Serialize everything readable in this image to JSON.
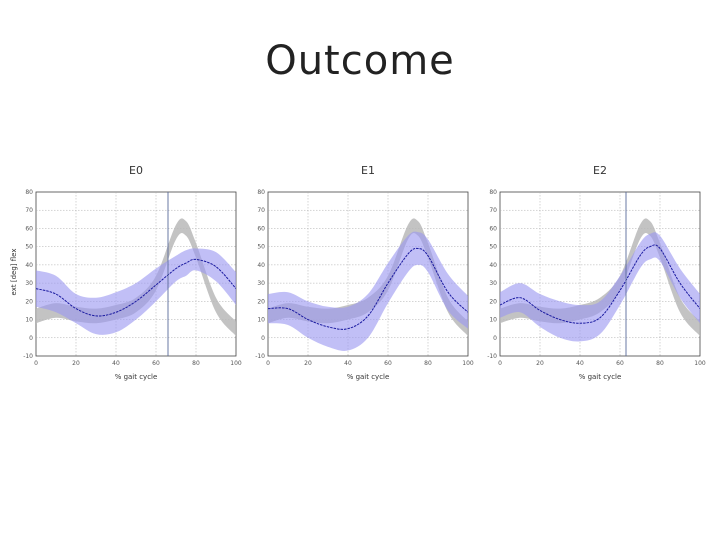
{
  "slide": {
    "title": "Outcome"
  },
  "colors": {
    "band_grey": "#b8b8b8",
    "band_blue": "#9b98f0",
    "mean_line": "#1a1aa0",
    "vline": "#5a6a9a"
  },
  "chart_data": [
    {
      "type": "line",
      "title": "E0",
      "xlabel": "% gait cycle",
      "ylabel": "ext  [deg]  flex",
      "xlim": [
        0,
        100
      ],
      "ylim": [
        -10,
        80
      ],
      "xticks": [
        "0",
        "20",
        "40",
        "60",
        "80",
        "100"
      ],
      "yticks": [
        "-10",
        "0",
        "10",
        "20",
        "30",
        "40",
        "50",
        "60",
        "70",
        "80"
      ],
      "grid": true,
      "vline_x": 66,
      "x": [
        0,
        10,
        20,
        30,
        40,
        50,
        60,
        70,
        75,
        80,
        90,
        100
      ],
      "series": [
        {
          "role": "reference-mean",
          "values": [
            12,
            15,
            13,
            12,
            14,
            18,
            30,
            58,
            60,
            48,
            18,
            5
          ]
        },
        {
          "role": "reference-band-halfwidth",
          "values": [
            4,
            4,
            4,
            4,
            4,
            4,
            4,
            4,
            4,
            4,
            4,
            4
          ]
        },
        {
          "role": "mean",
          "values": [
            27,
            24,
            16,
            12,
            14,
            20,
            29,
            38,
            41,
            43,
            39,
            27
          ]
        },
        {
          "role": "sd-band-halfwidth",
          "values": [
            10,
            10,
            8,
            10,
            11,
            10,
            9,
            7,
            7,
            6,
            8,
            9
          ]
        }
      ]
    },
    {
      "type": "line",
      "title": "E1",
      "xlabel": "% gait cycle",
      "ylabel": "",
      "xlim": [
        0,
        100
      ],
      "ylim": [
        -10,
        80
      ],
      "xticks": [
        "0",
        "20",
        "40",
        "60",
        "80",
        "100"
      ],
      "yticks": [
        "-10",
        "0",
        "10",
        "20",
        "30",
        "40",
        "50",
        "60",
        "70",
        "80"
      ],
      "grid": true,
      "x": [
        0,
        10,
        20,
        30,
        40,
        50,
        60,
        70,
        75,
        80,
        90,
        100
      ],
      "series": [
        {
          "role": "reference-mean",
          "values": [
            12,
            15,
            13,
            12,
            14,
            18,
            30,
            58,
            60,
            48,
            18,
            5
          ]
        },
        {
          "role": "reference-band-halfwidth",
          "values": [
            4,
            4,
            4,
            4,
            4,
            4,
            4,
            4,
            4,
            4,
            4,
            4
          ]
        },
        {
          "role": "mean",
          "values": [
            16,
            16,
            10,
            6,
            5,
            12,
            30,
            46,
            49,
            45,
            25,
            14
          ]
        },
        {
          "role": "sd-band-halfwidth",
          "values": [
            8,
            9,
            10,
            11,
            12,
            12,
            11,
            10,
            9,
            9,
            10,
            9
          ]
        }
      ]
    },
    {
      "type": "line",
      "title": "E2",
      "xlabel": "% gait cycle",
      "ylabel": "",
      "xlim": [
        0,
        100
      ],
      "ylim": [
        -10,
        80
      ],
      "xticks": [
        "0",
        "20",
        "40",
        "60",
        "80",
        "100"
      ],
      "yticks": [
        "-10",
        "0",
        "10",
        "20",
        "30",
        "40",
        "50",
        "60",
        "70",
        "80"
      ],
      "grid": true,
      "vline_x": 63,
      "x": [
        0,
        10,
        20,
        30,
        40,
        50,
        60,
        70,
        75,
        80,
        90,
        100
      ],
      "series": [
        {
          "role": "reference-mean",
          "values": [
            12,
            15,
            13,
            12,
            14,
            18,
            30,
            58,
            60,
            48,
            18,
            5
          ]
        },
        {
          "role": "reference-band-halfwidth",
          "values": [
            4,
            4,
            4,
            4,
            4,
            4,
            4,
            4,
            4,
            4,
            4,
            4
          ]
        },
        {
          "role": "mean",
          "values": [
            18,
            22,
            15,
            10,
            8,
            11,
            26,
            45,
            50,
            49,
            30,
            16
          ]
        },
        {
          "role": "sd-band-halfwidth",
          "values": [
            7,
            8,
            9,
            10,
            10,
            9,
            8,
            7,
            7,
            7,
            8,
            8
          ]
        }
      ]
    }
  ]
}
